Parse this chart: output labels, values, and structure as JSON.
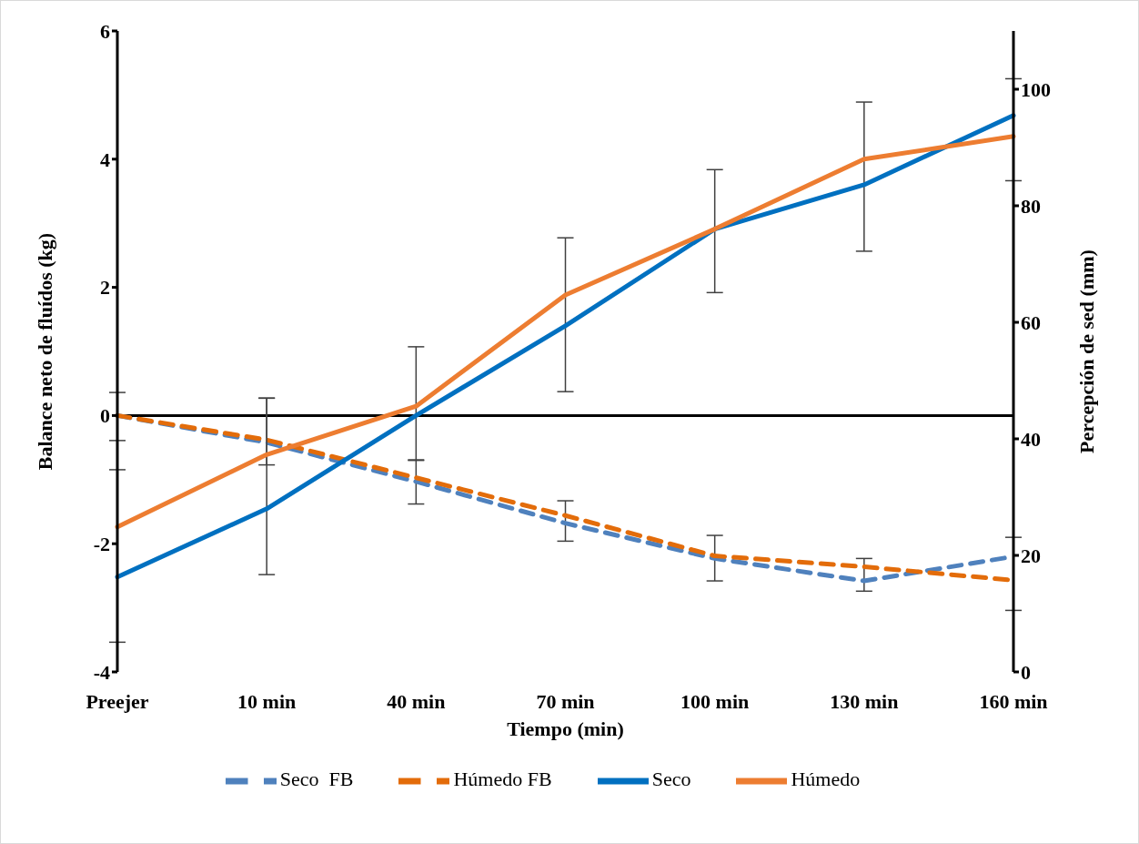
{
  "chart_data": {
    "type": "line",
    "xlabel": "Tiempo (min)",
    "ylabel": "Balance neto de fluídos (kg)",
    "y2label": "Percepción de sed (mm)",
    "categories": [
      "Preejer",
      "10 min",
      "40 min",
      "70 min",
      "100 min",
      "130 min",
      "160 min"
    ],
    "ylim": [
      -4,
      6
    ],
    "yticks": [
      -4,
      -2,
      0,
      2,
      4,
      6
    ],
    "y2lim": [
      0,
      110
    ],
    "y2ticks": [
      0,
      20,
      40,
      60,
      80,
      100
    ],
    "grid": false,
    "legend": "bottom",
    "marker": "none",
    "ref_lines": [
      {
        "axis": "y",
        "value": 0,
        "color": "#000000"
      }
    ],
    "series": [
      {
        "name": "Seco  FB",
        "color": "#4f81bd",
        "line_style": "dashed",
        "values": [
          0,
          -0.42,
          -1.03,
          -1.68,
          -2.23,
          -2.58,
          -2.2
        ],
        "errors": [
          [
            -0.39,
            0.36
          ],
          [
            -0.77,
            0.27
          ],
          [
            -1.38,
            -0.7
          ],
          [
            -1.96,
            -1.33
          ],
          [
            -2.58,
            -1.87
          ],
          [
            -2.74,
            -2.23
          ],
          [
            -3.04,
            -1.9
          ]
        ]
      },
      {
        "name": "Húmedo FB",
        "color": "#e36c0a",
        "line_style": "dashed",
        "values": [
          0,
          -0.38,
          -0.97,
          -1.56,
          -2.19,
          -2.36,
          -2.57
        ]
      },
      {
        "name": "Seco",
        "color": "#0070c0",
        "line_style": "solid",
        "axis": "y2",
        "values": [
          16.3,
          28,
          44,
          59.4,
          76,
          83.6,
          95.5
        ],
        "errors": [
          [
            5.1,
            34.7
          ],
          [
            16.7,
            47
          ],
          [
            36.4,
            55.8
          ],
          [
            48.1,
            74.5
          ],
          [
            65.1,
            86.2
          ],
          [
            72.2,
            97.8
          ],
          [
            84.3,
            101.8
          ]
        ]
      },
      {
        "name": "Húmedo",
        "color": "#ed7d31",
        "line_style": "solid",
        "axis": "y2",
        "values": [
          24.9,
          37.3,
          45.6,
          64.7,
          76,
          88,
          91.9
        ]
      }
    ]
  }
}
